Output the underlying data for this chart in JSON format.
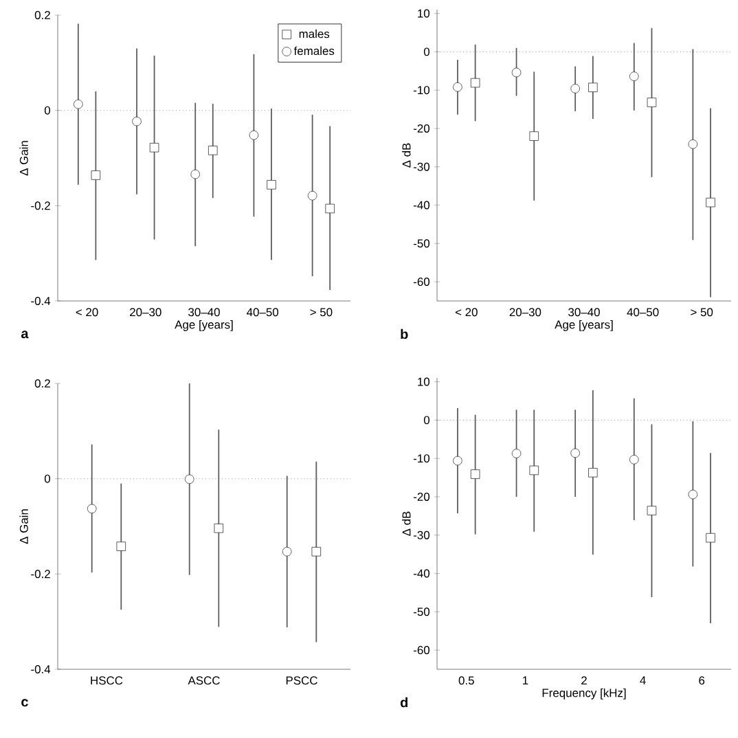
{
  "chart_data": [
    {
      "type": "scatter",
      "xlabel": "Age [years]",
      "ylabel": "Δ Gain",
      "categories": [
        "< 20",
        "20–30",
        "30–40",
        "40–50",
        "> 50"
      ],
      "ylim": [
        -0.4,
        0.2
      ],
      "yticks": [
        -0.4,
        -0.2,
        0,
        0.2
      ],
      "legend": "top right",
      "annotations": [
        "a"
      ],
      "ref_lines": [
        {
          "axis": "y",
          "value": 0,
          "line_style": "dotted"
        }
      ],
      "series": [
        {
          "name": "males",
          "color": "#333333",
          "marker": "square",
          "values": [
            -0.136,
            -0.078,
            -0.084,
            -0.156,
            -0.206
          ],
          "errors": [
            [
              -0.314,
              0.04
            ],
            [
              -0.271,
              0.115
            ],
            [
              -0.184,
              0.014
            ],
            [
              -0.314,
              0.004
            ],
            [
              -0.377,
              -0.033
            ]
          ]
        },
        {
          "name": "females",
          "color": "#333333",
          "marker": "circle",
          "values": [
            0.013,
            -0.023,
            -0.134,
            -0.052,
            -0.179
          ],
          "errors": [
            [
              -0.156,
              0.182
            ],
            [
              -0.176,
              0.13
            ],
            [
              -0.285,
              0.016
            ],
            [
              -0.223,
              0.118
            ],
            [
              -0.348,
              -0.009
            ]
          ]
        }
      ]
    },
    {
      "type": "scatter",
      "xlabel": "Age [years]",
      "ylabel": "Δ dB",
      "categories": [
        "< 20",
        "20–30",
        "30–40",
        "40–50",
        "> 50"
      ],
      "ylim": [
        -65,
        11
      ],
      "yticks": [
        -60,
        -50,
        -40,
        -30,
        -20,
        -10,
        0,
        10
      ],
      "annotations": [
        "b"
      ],
      "ref_lines": [
        {
          "axis": "y",
          "value": 0,
          "line_style": "dotted"
        }
      ],
      "series": [
        {
          "color": "#333333",
          "marker": "square",
          "values": [
            -8.1,
            -22.0,
            -9.3,
            -13.2,
            -39.3
          ],
          "errors": [
            [
              -18.1,
              1.9
            ],
            [
              -38.8,
              -5.2
            ],
            [
              -17.5,
              -1.1
            ],
            [
              -32.7,
              6.2
            ],
            [
              -64.0,
              -14.7
            ]
          ]
        },
        {
          "color": "#333333",
          "marker": "circle",
          "values": [
            -9.2,
            -5.4,
            -9.6,
            -6.4,
            -24.1
          ],
          "errors": [
            [
              -16.4,
              -2.1
            ],
            [
              -11.5,
              1.0
            ],
            [
              -15.5,
              -3.8
            ],
            [
              -15.3,
              2.3
            ],
            [
              -49.1,
              0.7
            ]
          ]
        }
      ]
    },
    {
      "type": "scatter",
      "ylabel": "Δ Gain",
      "categories": [
        "HSCC",
        "ASCC",
        "PSCC"
      ],
      "ylim": [
        -0.4,
        0.2
      ],
      "yticks": [
        -0.4,
        -0.2,
        0,
        0.2
      ],
      "annotations": [
        "c"
      ],
      "ref_lines": [
        {
          "axis": "y",
          "value": 0,
          "line_style": "dotted"
        }
      ],
      "series": [
        {
          "color": "#333333",
          "marker": "square",
          "values": [
            -0.142,
            -0.104,
            -0.153
          ],
          "errors": [
            [
              -0.275,
              -0.01
            ],
            [
              -0.311,
              0.103
            ],
            [
              -0.343,
              0.036
            ]
          ]
        },
        {
          "color": "#333333",
          "marker": "circle",
          "values": [
            -0.063,
            -0.001,
            -0.153
          ],
          "errors": [
            [
              -0.197,
              0.072
            ],
            [
              -0.202,
              0.2
            ],
            [
              -0.312,
              0.006
            ]
          ]
        }
      ]
    },
    {
      "type": "scatter",
      "xlabel": "Frequency [kHz]",
      "ylabel": "Δ dB",
      "categories": [
        "0.5",
        "1",
        "2",
        "4",
        "6"
      ],
      "ylim": [
        -65,
        11
      ],
      "yticks": [
        -60,
        -50,
        -40,
        -30,
        -20,
        -10,
        0,
        10
      ],
      "annotations": [
        "d"
      ],
      "ref_lines": [
        {
          "axis": "y",
          "value": 0,
          "line_style": "dotted"
        }
      ],
      "series": [
        {
          "color": "#333333",
          "marker": "square",
          "values": [
            -14.1,
            -13.1,
            -13.7,
            -23.6,
            -30.7
          ],
          "errors": [
            [
              -29.8,
              1.4
            ],
            [
              -29.1,
              2.7
            ],
            [
              -35.1,
              7.8
            ],
            [
              -46.2,
              -1.1
            ],
            [
              -53.0,
              -8.6
            ]
          ]
        },
        {
          "color": "#333333",
          "marker": "circle",
          "values": [
            -10.6,
            -8.7,
            -8.6,
            -10.3,
            -19.4
          ],
          "errors": [
            [
              -24.3,
              3.1
            ],
            [
              -20.0,
              2.7
            ],
            [
              -20.0,
              2.7
            ],
            [
              -26.1,
              5.7
            ],
            [
              -38.2,
              -0.3
            ]
          ]
        }
      ]
    }
  ]
}
